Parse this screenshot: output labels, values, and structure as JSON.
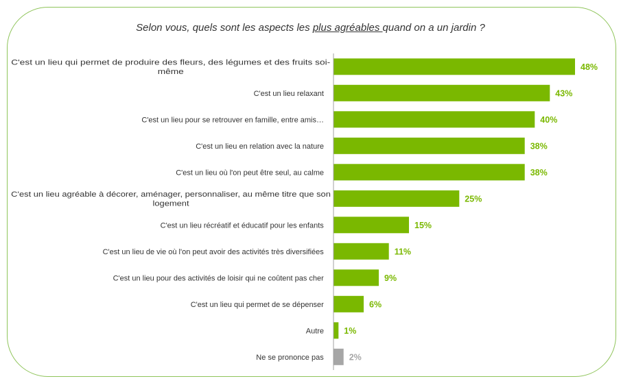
{
  "title": {
    "pre": "Selon vous, quels sont les aspects  les ",
    "emph": "plus agréables ",
    "post": "quand on a un jardin ?"
  },
  "colors": {
    "main": "#7ab800",
    "muted": "#a6a6a6",
    "frame": "#8fc45a",
    "axis": "#a0a0a0"
  },
  "chart_data": {
    "type": "bar",
    "orientation": "horizontal",
    "unit": "%",
    "categories": [
      "C'est un lieu qui permet de produire des fleurs, des légumes et des fruits soi-même",
      "C'est un lieu relaxant",
      "C'est un lieu pour se retrouver en famille, entre amis…",
      "C'est un lieu en relation avec la nature",
      "C'est un lieu où l'on peut être seul, au calme",
      "C'est un lieu agréable à décorer, aménager, personnaliser, au même titre que son logement",
      "C'est un lieu récréatif et éducatif pour les enfants",
      "C'est un lieu de vie où l'on peut avoir des activités très diversifiées",
      "C'est un lieu pour des activités de loisir qui ne coûtent pas cher",
      "C'est un lieu qui permet de se dépenser",
      "Autre",
      "Ne se prononce pas"
    ],
    "category_lines": [
      [
        "C'est un lieu qui permet de produire des fleurs, des légumes et des fruits soi-",
        "même"
      ],
      [
        "C'est un lieu relaxant"
      ],
      [
        "C'est un lieu pour se retrouver en famille, entre amis…"
      ],
      [
        "C'est un lieu en relation avec la nature"
      ],
      [
        "C'est un lieu où l'on peut être seul, au calme"
      ],
      [
        "C'est un lieu agréable à décorer, aménager, personnaliser, au même titre que son",
        "logement"
      ],
      [
        "C'est un lieu récréatif et éducatif pour les enfants"
      ],
      [
        "C'est un lieu de vie où l'on peut avoir des activités très diversifiées"
      ],
      [
        "C'est un lieu pour des activités de loisir qui ne coûtent pas cher"
      ],
      [
        "C'est un lieu qui permet de se dépenser"
      ],
      [
        "Autre"
      ],
      [
        "Ne se prononce pas"
      ]
    ],
    "values": [
      48,
      43,
      40,
      38,
      38,
      25,
      15,
      11,
      9,
      6,
      1,
      2
    ],
    "labels": [
      "48%",
      "43%",
      "40%",
      "38%",
      "38%",
      "25%",
      "15%",
      "11%",
      "9%",
      "6%",
      "1%",
      "2%"
    ],
    "muted_indices": [
      11
    ]
  }
}
